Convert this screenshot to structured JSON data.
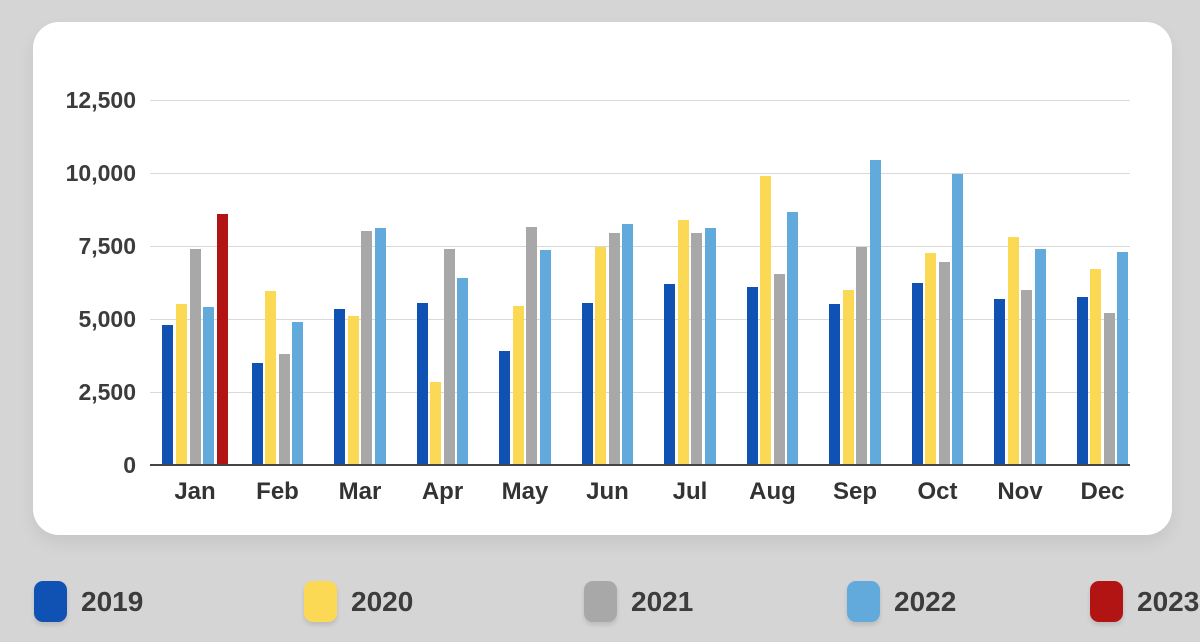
{
  "canvas": {
    "background": "#d5d5d5",
    "card_background": "#ffffff",
    "grid_color": "#d9d9d9",
    "axis_color": "#454545",
    "text_color": "#3c3c3c"
  },
  "chart_data": {
    "type": "bar",
    "title": "",
    "xlabel": "",
    "ylabel": "",
    "grid": true,
    "legend_position": "bottom-outside",
    "ylim": [
      0,
      12500
    ],
    "yticks": [
      0,
      2500,
      5000,
      7500,
      10000,
      12500
    ],
    "ytick_labels": [
      "0",
      "2,500",
      "5,000",
      "7,500",
      "10,000",
      "12,500"
    ],
    "categories": [
      "Jan",
      "Feb",
      "Mar",
      "Apr",
      "May",
      "Jun",
      "Jul",
      "Aug",
      "Sep",
      "Oct",
      "Nov",
      "Dec"
    ],
    "series": [
      {
        "name": "2019",
        "color": "#0f52b4",
        "values": [
          4800,
          3500,
          5350,
          5550,
          3900,
          5550,
          6200,
          6100,
          5500,
          6250,
          5700,
          5750
        ]
      },
      {
        "name": "2020",
        "color": "#fcd955",
        "values": [
          5500,
          5950,
          5100,
          2850,
          5450,
          7450,
          8400,
          9900,
          6000,
          7250,
          7800,
          6700
        ]
      },
      {
        "name": "2021",
        "color": "#a8a8a8",
        "values": [
          7400,
          3800,
          8000,
          7400,
          8150,
          7950,
          7950,
          6550,
          7450,
          6950,
          6000,
          5200
        ]
      },
      {
        "name": "2022",
        "color": "#62a9dc",
        "values": [
          5400,
          4900,
          8100,
          6400,
          7350,
          8250,
          8100,
          8650,
          10450,
          9950,
          7400,
          7300
        ]
      },
      {
        "name": "2023",
        "color": "#b21414",
        "values": [
          8600,
          null,
          null,
          null,
          null,
          null,
          null,
          null,
          null,
          null,
          null,
          null
        ]
      }
    ]
  },
  "legend": {
    "items": [
      {
        "label": "2019",
        "color": "#0f52b4"
      },
      {
        "label": "2020",
        "color": "#fcd955"
      },
      {
        "label": "2021",
        "color": "#a8a8a8"
      },
      {
        "label": "2022",
        "color": "#62a9dc"
      },
      {
        "label": "2023",
        "color": "#b21414"
      }
    ]
  }
}
